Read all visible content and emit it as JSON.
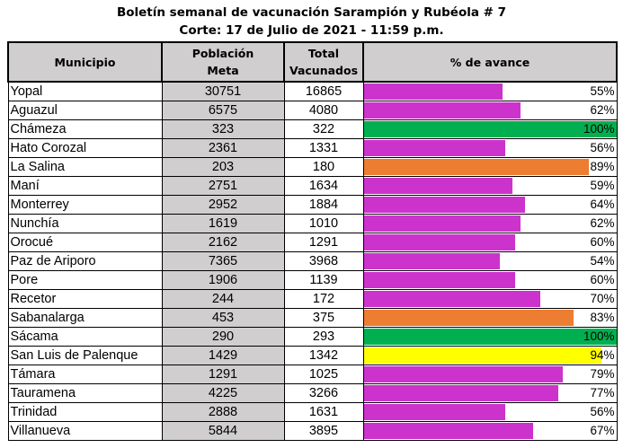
{
  "title": "Boletín semanal de vacunación Sarampión y Rubéola # 7",
  "subtitle": "Corte: 17 de Julio de 2021 - 11:59 p.m.",
  "headers": {
    "municipio": "Municipio",
    "poblacion_line1": "Población",
    "poblacion_line2": "Meta",
    "total_line1": "Total",
    "total_line2": "Vacunados",
    "avance": "% de avance"
  },
  "colors": {
    "magenta": "#cc33cc",
    "green": "#00b050",
    "orange": "#ed7d31",
    "yellow": "#ffff00",
    "header_gray": "#d0cece"
  },
  "rows": [
    {
      "municipio": "Yopal",
      "poblacion": "30751",
      "vacunados": "16865",
      "avance": "55%",
      "fraction": 0.55,
      "color": "#cc33cc"
    },
    {
      "municipio": "Aguazul",
      "poblacion": "6575",
      "vacunados": "4080",
      "avance": "62%",
      "fraction": 0.62,
      "color": "#cc33cc"
    },
    {
      "municipio": "Chámeza",
      "poblacion": "323",
      "vacunados": "322",
      "avance": "100%",
      "fraction": 1.0,
      "color": "#00b050"
    },
    {
      "municipio": "Hato Corozal",
      "poblacion": "2361",
      "vacunados": "1331",
      "avance": "56%",
      "fraction": 0.56,
      "color": "#cc33cc"
    },
    {
      "municipio": "La Salina",
      "poblacion": "203",
      "vacunados": "180",
      "avance": "89%",
      "fraction": 0.89,
      "color": "#ed7d31"
    },
    {
      "municipio": "Maní",
      "poblacion": "2751",
      "vacunados": "1634",
      "avance": "59%",
      "fraction": 0.59,
      "color": "#cc33cc"
    },
    {
      "municipio": "Monterrey",
      "poblacion": "2952",
      "vacunados": "1884",
      "avance": "64%",
      "fraction": 0.64,
      "color": "#cc33cc"
    },
    {
      "municipio": "Nunchía",
      "poblacion": "1619",
      "vacunados": "1010",
      "avance": "62%",
      "fraction": 0.62,
      "color": "#cc33cc"
    },
    {
      "municipio": "Orocué",
      "poblacion": "2162",
      "vacunados": "1291",
      "avance": "60%",
      "fraction": 0.6,
      "color": "#cc33cc"
    },
    {
      "municipio": "Paz de Ariporo",
      "poblacion": "7365",
      "vacunados": "3968",
      "avance": "54%",
      "fraction": 0.54,
      "color": "#cc33cc"
    },
    {
      "municipio": "Pore",
      "poblacion": "1906",
      "vacunados": "1139",
      "avance": "60%",
      "fraction": 0.6,
      "color": "#cc33cc"
    },
    {
      "municipio": "Recetor",
      "poblacion": "244",
      "vacunados": "172",
      "avance": "70%",
      "fraction": 0.7,
      "color": "#cc33cc"
    },
    {
      "municipio": "Sabanalarga",
      "poblacion": "453",
      "vacunados": "375",
      "avance": "83%",
      "fraction": 0.83,
      "color": "#ed7d31"
    },
    {
      "municipio": "Sácama",
      "poblacion": "290",
      "vacunados": "293",
      "avance": "100%",
      "fraction": 1.0,
      "color": "#00b050"
    },
    {
      "municipio": "San Luis de Palenque",
      "poblacion": "1429",
      "vacunados": "1342",
      "avance": "94%",
      "fraction": 0.94,
      "color": "#ffff00"
    },
    {
      "municipio": "Támara",
      "poblacion": "1291",
      "vacunados": "1025",
      "avance": "79%",
      "fraction": 0.79,
      "color": "#cc33cc"
    },
    {
      "municipio": "Tauramena",
      "poblacion": "4225",
      "vacunados": "3266",
      "avance": "77%",
      "fraction": 0.77,
      "color": "#cc33cc"
    },
    {
      "municipio": "Trinidad",
      "poblacion": "2888",
      "vacunados": "1631",
      "avance": "56%",
      "fraction": 0.56,
      "color": "#cc33cc"
    },
    {
      "municipio": "Villanueva",
      "poblacion": "5844",
      "vacunados": "3895",
      "avance": "67%",
      "fraction": 0.67,
      "color": "#cc33cc"
    }
  ]
}
